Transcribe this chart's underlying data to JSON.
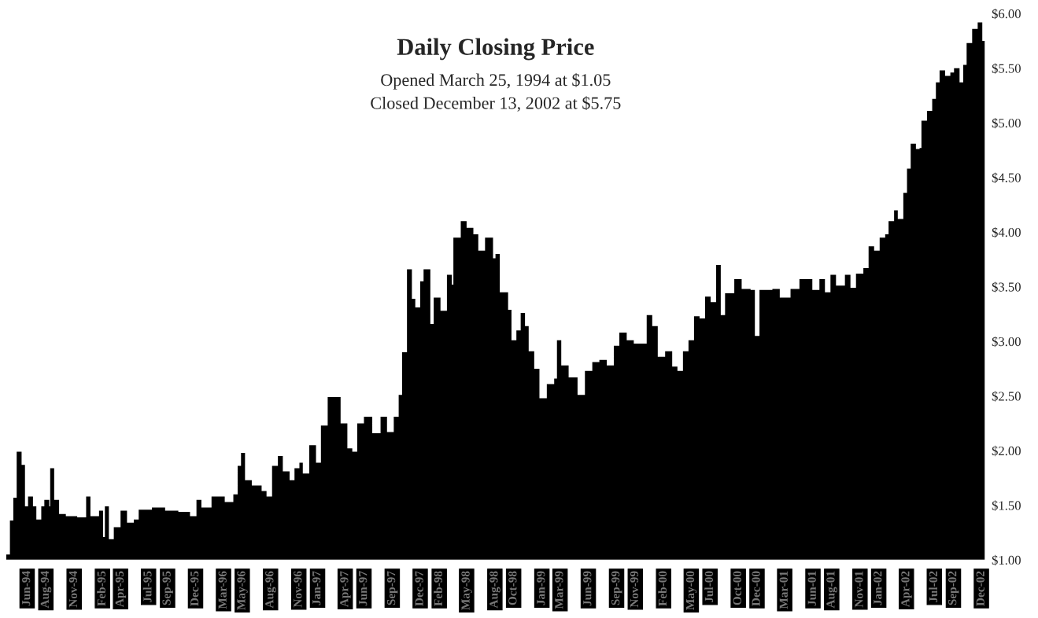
{
  "chart_data": {
    "type": "area",
    "title": "Daily Closing Price",
    "subtitle": "Opened March 25, 1994 at $1.05\nClosed December 13, 2002 at $5.75",
    "color": "#000000",
    "x": [
      "1994-03-25",
      "1994-04-06",
      "1994-04-17",
      "1994-04-28",
      "1994-05-14",
      "1994-05-25",
      "1994-06-04",
      "1994-06-20",
      "1994-07-01",
      "1994-07-17",
      "1994-07-27",
      "1994-08-12",
      "1994-08-15",
      "1994-08-28",
      "1994-09-13",
      "1994-10-05",
      "1994-11-11",
      "1994-12-10",
      "1994-12-24",
      "1995-01-21",
      "1995-02-03",
      "1995-02-09",
      "1995-02-22",
      "1995-03-10",
      "1995-04-01",
      "1995-04-22",
      "1995-05-14",
      "1995-05-30",
      "1995-07-12",
      "1995-08-24",
      "1995-10-06",
      "1995-11-13",
      "1995-12-04",
      "1995-12-20",
      "1996-01-22",
      "1996-03-05",
      "1996-04-02",
      "1996-04-16",
      "1996-04-27",
      "1996-05-10",
      "1996-06-01",
      "1996-07-03",
      "1996-07-19",
      "1996-08-06",
      "1996-08-25",
      "1996-09-10",
      "1996-10-02",
      "1996-10-18",
      "1996-11-03",
      "1996-11-14",
      "1996-12-05",
      "1996-12-27",
      "1997-01-12",
      "1997-02-03",
      "1997-02-24",
      "1997-03-17",
      "1997-04-08",
      "1997-04-24",
      "1997-05-10",
      "1997-06-01",
      "1997-06-28",
      "1997-07-25",
      "1997-08-15",
      "1997-09-06",
      "1997-09-22",
      "1997-10-03",
      "1997-10-19",
      "1997-11-04",
      "1997-11-15",
      "1997-12-01",
      "1997-12-12",
      "1998-01-03",
      "1998-01-14",
      "1998-02-05",
      "1998-02-26",
      "1998-03-14",
      "1998-03-19",
      "1998-04-12",
      "1998-05-01",
      "1998-05-23",
      "1998-06-08",
      "1998-06-30",
      "1998-07-26",
      "1998-08-03",
      "1998-08-17",
      "1998-09-13",
      "1998-09-24",
      "1998-10-10",
      "1998-10-24",
      "1998-11-07",
      "1998-11-19",
      "1998-12-07",
      "1998-12-24",
      "1999-01-17",
      "1999-02-10",
      "1999-02-19",
      "1999-03-05",
      "1999-03-29",
      "1999-04-27",
      "1999-05-21",
      "1999-06-14",
      "1999-07-07",
      "1999-07-31",
      "1999-08-23",
      "1999-09-10",
      "1999-10-04",
      "1999-10-27",
      "1999-12-08",
      "1999-12-26",
      "2000-01-13",
      "2000-02-06",
      "2000-02-29",
      "2000-03-17",
      "2000-04-04",
      "2000-04-22",
      "2000-05-10",
      "2000-05-28",
      "2000-06-15",
      "2000-07-03",
      "2000-07-21",
      "2000-08-05",
      "2000-08-19",
      "2000-09-18",
      "2000-10-12",
      "2000-11-10",
      "2000-11-24",
      "2000-12-09",
      "2001-01-20",
      "2001-02-13",
      "2001-03-20",
      "2001-04-18",
      "2001-05-12",
      "2001-05-30",
      "2001-06-22",
      "2001-07-10",
      "2001-07-28",
      "2001-08-15",
      "2001-09-13",
      "2001-10-01",
      "2001-10-19",
      "2001-11-12",
      "2001-11-29",
      "2001-12-17",
      "2002-01-04",
      "2002-01-22",
      "2002-02-02",
      "2002-02-20",
      "2002-03-04",
      "2002-03-22",
      "2002-04-03",
      "2002-04-15",
      "2002-05-02",
      "2002-05-14",
      "2002-05-20",
      "2002-06-07",
      "2002-06-24",
      "2002-07-06",
      "2002-07-18",
      "2002-08-05",
      "2002-08-22",
      "2002-09-03",
      "2002-09-21",
      "2002-10-03",
      "2002-10-14",
      "2002-11-01",
      "2002-11-19",
      "2002-12-04",
      "2002-12-13"
    ],
    "values": [
      1.05,
      1.36,
      1.57,
      1.99,
      1.87,
      1.49,
      1.58,
      1.49,
      1.37,
      1.49,
      1.55,
      1.49,
      1.84,
      1.55,
      1.42,
      1.4,
      1.39,
      1.58,
      1.4,
      1.45,
      1.21,
      1.49,
      1.19,
      1.3,
      1.45,
      1.34,
      1.37,
      1.46,
      1.48,
      1.45,
      1.44,
      1.4,
      1.55,
      1.48,
      1.58,
      1.53,
      1.6,
      1.86,
      1.98,
      1.73,
      1.68,
      1.63,
      1.58,
      1.86,
      1.95,
      1.81,
      1.73,
      1.84,
      1.89,
      1.79,
      2.05,
      1.89,
      2.23,
      2.49,
      2.49,
      2.25,
      2.02,
      1.99,
      2.25,
      2.31,
      2.16,
      2.31,
      2.17,
      2.31,
      2.51,
      2.9,
      3.66,
      3.39,
      3.31,
      3.55,
      3.66,
      3.16,
      3.4,
      3.28,
      3.61,
      3.52,
      3.95,
      4.1,
      4.04,
      3.98,
      3.83,
      3.95,
      3.76,
      3.8,
      3.45,
      3.29,
      3.01,
      3.1,
      3.26,
      3.14,
      2.91,
      2.75,
      2.48,
      2.61,
      2.66,
      3.01,
      2.78,
      2.67,
      2.51,
      2.73,
      2.81,
      2.83,
      2.78,
      2.96,
      3.08,
      3.01,
      2.98,
      3.24,
      3.14,
      2.86,
      2.91,
      2.77,
      2.73,
      2.91,
      3.01,
      3.23,
      3.21,
      3.41,
      3.36,
      3.7,
      3.24,
      3.44,
      3.57,
      3.48,
      3.47,
      3.05,
      3.47,
      3.48,
      3.4,
      3.48,
      3.57,
      3.57,
      3.47,
      3.57,
      3.45,
      3.61,
      3.51,
      3.61,
      3.49,
      3.62,
      3.67,
      3.87,
      3.83,
      3.95,
      3.98,
      4.1,
      4.2,
      4.12,
      4.36,
      4.58,
      4.81,
      4.76,
      4.77,
      5.02,
      5.11,
      5.22,
      5.37,
      5.48,
      5.43,
      5.46,
      5.5,
      5.37,
      5.53,
      5.73,
      5.86,
      5.92,
      5.75,
      5.75
    ],
    "xlim": [
      "1994-03-25",
      "2002-12-13"
    ],
    "xticks": [
      {
        "value": "1994-06-01",
        "label": "Jun-94"
      },
      {
        "value": "1994-08-01",
        "label": "Aug-94"
      },
      {
        "value": "1994-11-01",
        "label": "Nov-94"
      },
      {
        "value": "1995-02-01",
        "label": "Feb-95"
      },
      {
        "value": "1995-04-01",
        "label": "Apr-95"
      },
      {
        "value": "1995-07-01",
        "label": "Jul-95"
      },
      {
        "value": "1995-09-01",
        "label": "Sep-95"
      },
      {
        "value": "1995-12-01",
        "label": "Dec-95"
      },
      {
        "value": "1996-03-01",
        "label": "Mar-96"
      },
      {
        "value": "1996-05-01",
        "label": "May-96"
      },
      {
        "value": "1996-08-01",
        "label": "Aug-96"
      },
      {
        "value": "1996-11-01",
        "label": "Nov-96"
      },
      {
        "value": "1997-01-01",
        "label": "Jan-97"
      },
      {
        "value": "1997-04-01",
        "label": "Apr-97"
      },
      {
        "value": "1997-06-01",
        "label": "Jun-97"
      },
      {
        "value": "1997-09-01",
        "label": "Sep-97"
      },
      {
        "value": "1997-12-01",
        "label": "Dec-97"
      },
      {
        "value": "1998-02-01",
        "label": "Feb-98"
      },
      {
        "value": "1998-05-01",
        "label": "May-98"
      },
      {
        "value": "1998-08-01",
        "label": "Aug-98"
      },
      {
        "value": "1998-10-01",
        "label": "Oct-98"
      },
      {
        "value": "1999-01-01",
        "label": "Jan-99"
      },
      {
        "value": "1999-03-01",
        "label": "Mar-99"
      },
      {
        "value": "1999-06-01",
        "label": "Jun-99"
      },
      {
        "value": "1999-09-01",
        "label": "Sep-99"
      },
      {
        "value": "1999-11-01",
        "label": "Nov-99"
      },
      {
        "value": "2000-02-01",
        "label": "Feb-00"
      },
      {
        "value": "2000-05-01",
        "label": "May-00"
      },
      {
        "value": "2000-07-01",
        "label": "Jul-00"
      },
      {
        "value": "2000-10-01",
        "label": "Oct-00"
      },
      {
        "value": "2000-12-01",
        "label": "Dec-00"
      },
      {
        "value": "2001-03-01",
        "label": "Mar-01"
      },
      {
        "value": "2001-06-01",
        "label": "Jun-01"
      },
      {
        "value": "2001-08-01",
        "label": "Aug-01"
      },
      {
        "value": "2001-11-01",
        "label": "Nov-01"
      },
      {
        "value": "2002-01-01",
        "label": "Jan-02"
      },
      {
        "value": "2002-04-01",
        "label": "Apr-02"
      },
      {
        "value": "2002-07-01",
        "label": "Jul-02"
      },
      {
        "value": "2002-09-01",
        "label": "Sep-02"
      },
      {
        "value": "2002-12-01",
        "label": "Dec-02"
      }
    ],
    "ylim": [
      1,
      6
    ],
    "yticks": [
      {
        "value": 1,
        "label": "$1.00"
      },
      {
        "value": 1.5,
        "label": "$1.50"
      },
      {
        "value": 2,
        "label": "$2.00"
      },
      {
        "value": 2.5,
        "label": "$2.50"
      },
      {
        "value": 3,
        "label": "$3.00"
      },
      {
        "value": 3.5,
        "label": "$3.50"
      },
      {
        "value": 4,
        "label": "$4.00"
      },
      {
        "value": 4.5,
        "label": "$4.50"
      },
      {
        "value": 5,
        "label": "$5.00"
      },
      {
        "value": 5.5,
        "label": "$5.50"
      },
      {
        "value": 6,
        "label": "$6.00"
      }
    ],
    "grid": false,
    "legend": false
  }
}
